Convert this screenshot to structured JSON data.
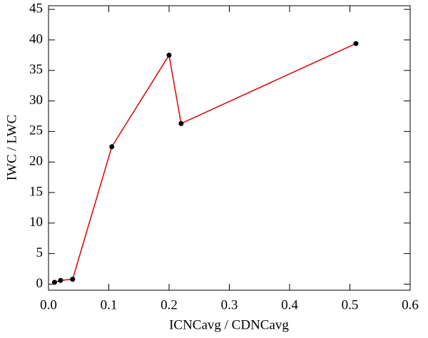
{
  "chart_data": {
    "type": "line",
    "x_label": "ICNCavg / CDNCavg",
    "y_label": "IWC / LWC",
    "x": [
      0.01,
      0.02,
      0.04,
      0.105,
      0.2,
      0.22,
      0.51
    ],
    "series": [
      {
        "color": "#dd0000",
        "marker_color": "#000000",
        "values": [
          0.3,
          0.6,
          0.8,
          22.5,
          37.5,
          26.3,
          39.4
        ]
      }
    ],
    "xlim": [
      0,
      0.6
    ],
    "ylim": [
      -1,
      45.6
    ],
    "xticks": [
      {
        "value": 0,
        "label": "0.0"
      },
      0.1,
      0.2,
      0.3,
      0.4,
      0.5,
      0.6
    ],
    "yticks": [
      0,
      5,
      10,
      15,
      20,
      25,
      30,
      35,
      40,
      45
    ]
  }
}
